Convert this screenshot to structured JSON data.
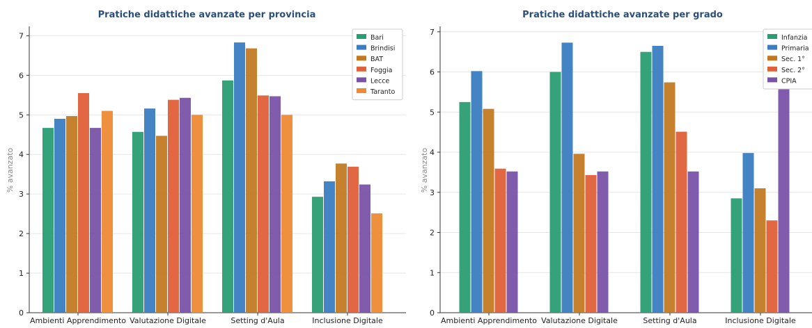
{
  "chart_data": [
    {
      "type": "bar",
      "title": "Pratiche didattiche avanzate per provincia",
      "ylabel": "% avanzato",
      "xlabel": "",
      "ylim": [
        0,
        7.2
      ],
      "yticks": [
        0,
        1,
        2,
        3,
        4,
        5,
        6,
        7
      ],
      "grid": "horizontal",
      "legend_position": "top-right",
      "categories": [
        "Ambienti Apprendimento",
        "Valutazione Digitale",
        "Setting d'Aula",
        "Inclusione Digitale"
      ],
      "series": [
        {
          "name": "Bari",
          "color": "#2a9d73",
          "values": [
            4.67,
            4.57,
            5.87,
            2.93
          ]
        },
        {
          "name": "Brindisi",
          "color": "#3b7dc1",
          "values": [
            4.9,
            5.16,
            6.83,
            3.32
          ]
        },
        {
          "name": "BAT",
          "color": "#c27a22",
          "values": [
            4.97,
            4.47,
            6.68,
            3.77
          ]
        },
        {
          "name": "Foggia",
          "color": "#e0603a",
          "values": [
            5.55,
            5.38,
            5.49,
            3.69
          ]
        },
        {
          "name": "Lecce",
          "color": "#7a52a8",
          "values": [
            4.67,
            5.43,
            5.47,
            3.24
          ]
        },
        {
          "name": "Taranto",
          "color": "#ee8a35",
          "values": [
            5.1,
            5.0,
            5.0,
            2.51
          ]
        }
      ]
    },
    {
      "type": "bar",
      "title": "Pratiche didattiche avanzate per grado",
      "ylabel": "% avanzato",
      "xlabel": "",
      "ylim": [
        0,
        7.1
      ],
      "yticks": [
        0,
        1,
        2,
        3,
        4,
        5,
        6,
        7
      ],
      "grid": "horizontal",
      "legend_position": "top-right",
      "categories": [
        "Ambienti Apprendimento",
        "Valutazione Digitale",
        "Setting d'Aula",
        "Inclusione Digitale"
      ],
      "series": [
        {
          "name": "Infanzia",
          "color": "#2a9d73",
          "values": [
            5.25,
            6.0,
            6.5,
            2.85
          ]
        },
        {
          "name": "Primaria",
          "color": "#3b7dc1",
          "values": [
            6.02,
            6.73,
            6.65,
            3.98
          ]
        },
        {
          "name": "Sec. 1°",
          "color": "#c27a22",
          "values": [
            5.08,
            3.96,
            5.74,
            3.1
          ]
        },
        {
          "name": "Sec. 2°",
          "color": "#e0603a",
          "values": [
            3.59,
            3.43,
            4.51,
            2.3
          ]
        },
        {
          "name": "CPIA",
          "color": "#7a52a8",
          "values": [
            3.52,
            3.52,
            3.52,
            5.8
          ]
        }
      ]
    }
  ]
}
